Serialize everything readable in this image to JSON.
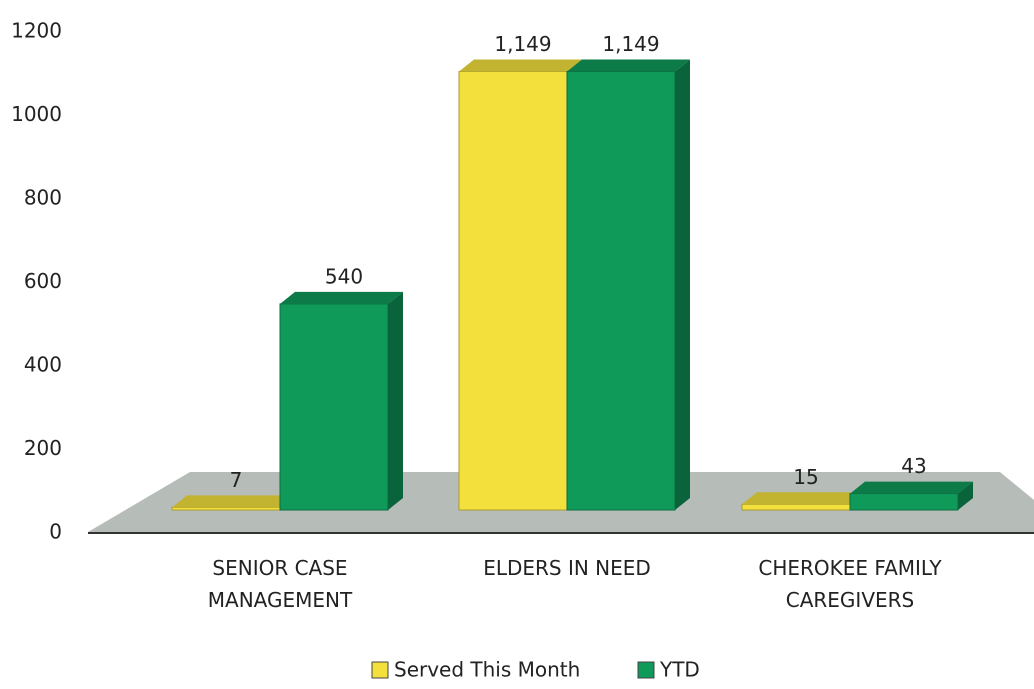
{
  "chart_data": {
    "type": "bar3d",
    "categories": [
      "SENIOR CASE MANAGEMENT",
      "ELDERS IN NEED",
      "CHEROKEE FAMILY CAREGIVERS"
    ],
    "series": [
      {
        "name": "Served This Month",
        "color": "#f3e03c",
        "values": [
          7,
          1149,
          15
        ],
        "value_labels": [
          "7",
          "1,149",
          "15"
        ]
      },
      {
        "name": "YTD",
        "color": "#109a5a",
        "values": [
          540,
          1149,
          43
        ],
        "value_labels": [
          "540",
          "1,149",
          "43"
        ]
      }
    ],
    "ylim": [
      0,
      1200
    ],
    "yticks": [
      0,
      200,
      400,
      600,
      800,
      1000,
      1200
    ],
    "grid": false
  }
}
